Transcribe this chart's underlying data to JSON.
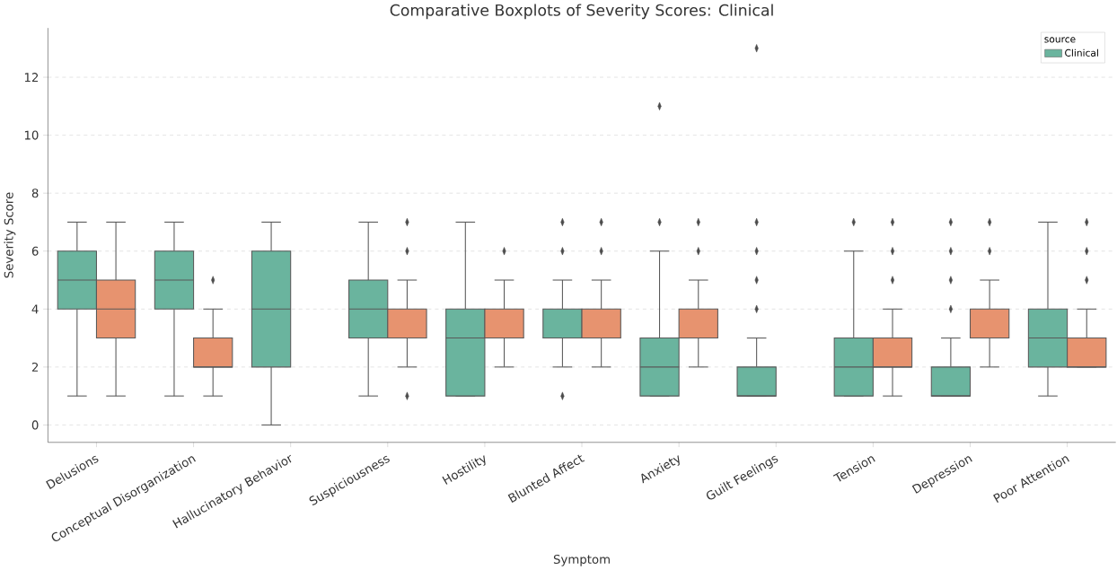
{
  "chart_data": {
    "type": "box",
    "title": "Comparative Boxplots of Severity Scores: Clinical",
    "xlabel": "Symptom",
    "ylabel": "Severity Score",
    "legend_title": "source",
    "categories": [
      "Delusions",
      "Conceptual Disorganization",
      "Hallucinatory Behavior",
      "Suspiciousness",
      "Hostility",
      "Blunted Affect",
      "Anxiety",
      "Guilt Feelings",
      "Tension",
      "Depression",
      "Poor Attention"
    ],
    "series": [
      {
        "name": "Clinical",
        "color": "#6ab49e",
        "boxes": [
          {
            "low": 1,
            "q1": 4,
            "median": 5,
            "q3": 6,
            "high": 7
          },
          {
            "low": 1,
            "q1": 4,
            "median": 5,
            "q3": 6,
            "high": 7
          },
          {
            "low": 0,
            "q1": 2,
            "median": 4,
            "q3": 6,
            "high": 7
          },
          {
            "low": 1,
            "q1": 3,
            "median": 4,
            "q3": 5,
            "high": 7
          },
          {
            "low": 1,
            "q1": 1,
            "median": 3,
            "q3": 4,
            "high": 7
          },
          {
            "low": 2,
            "q1": 3,
            "median": 3,
            "q3": 4,
            "high": 5,
            "outliers": [
              1,
              6,
              7
            ]
          },
          {
            "low": 1,
            "q1": 1,
            "median": 2,
            "q3": 3,
            "high": 6,
            "outliers": [
              7,
              11
            ]
          },
          {
            "low": 1,
            "q1": 1,
            "median": 1,
            "q3": 2,
            "high": 3,
            "outliers": [
              4,
              5,
              6,
              7,
              13
            ]
          },
          {
            "low": 1,
            "q1": 1,
            "median": 2,
            "q3": 3,
            "high": 6,
            "outliers": [
              7
            ]
          },
          {
            "low": 1,
            "q1": 1,
            "median": 1,
            "q3": 2,
            "high": 3,
            "outliers": [
              4,
              5,
              6,
              7
            ]
          },
          {
            "low": 1,
            "q1": 2,
            "median": 3,
            "q3": 4,
            "high": 7
          }
        ]
      },
      {
        "color": "#e7936f",
        "boxes": [
          {
            "low": 1,
            "q1": 3,
            "median": 4,
            "q3": 5,
            "high": 7
          },
          {
            "low": 1,
            "q1": 2,
            "median": 2,
            "q3": 3,
            "high": 4,
            "outliers": [
              5
            ]
          },
          null,
          {
            "low": 2,
            "q1": 3,
            "median": 3,
            "q3": 4,
            "high": 5,
            "outliers": [
              1,
              6,
              7
            ]
          },
          {
            "low": 2,
            "q1": 3,
            "median": 3,
            "q3": 4,
            "high": 5,
            "outliers": [
              6
            ]
          },
          {
            "low": 2,
            "q1": 3,
            "median": 3,
            "q3": 4,
            "high": 5,
            "outliers": [
              6,
              7
            ]
          },
          {
            "low": 2,
            "q1": 3,
            "median": 3,
            "q3": 4,
            "high": 5,
            "outliers": [
              6,
              7
            ]
          },
          null,
          {
            "low": 1,
            "q1": 2,
            "median": 2,
            "q3": 3,
            "high": 4,
            "outliers": [
              5,
              6,
              7
            ]
          },
          {
            "low": 2,
            "q1": 3,
            "median": 3,
            "q3": 4,
            "high": 5,
            "outliers": [
              6,
              7
            ]
          },
          {
            "low": 2,
            "q1": 2,
            "median": 2,
            "q3": 3,
            "high": 4,
            "outliers": [
              5,
              6,
              7
            ]
          }
        ]
      }
    ],
    "ylim": [
      -0.6,
      13.7
    ],
    "yticks": [
      0,
      2,
      4,
      6,
      8,
      10,
      12
    ],
    "grid": "y",
    "legend": "top right",
    "marker": "diamond"
  }
}
